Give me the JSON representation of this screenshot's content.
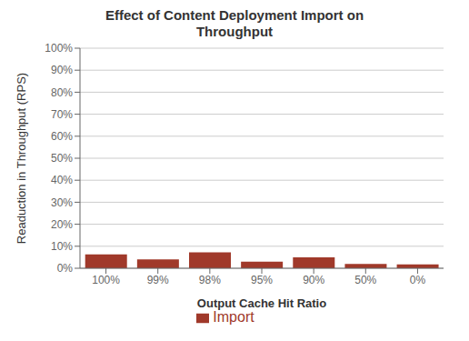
{
  "chart_data": {
    "type": "bar",
    "title": "Effect of Content Deployment Import on\nThroughput",
    "xlabel": "Output Cache Hit Ratio",
    "ylabel": "Readuction in Throughput  (RPS)",
    "categories": [
      "100%",
      "99%",
      "98%",
      "95%",
      "90%",
      "50%",
      "0%"
    ],
    "series": [
      {
        "name": "Import",
        "color": "#A0392A",
        "values": [
          0.063,
          0.04,
          0.072,
          0.03,
          0.05,
          0.02,
          0.018
        ]
      }
    ],
    "ylim": [
      0,
      1.0
    ],
    "yticks": [
      {
        "value": 0.0,
        "label": "0%"
      },
      {
        "value": 0.1,
        "label": "10%"
      },
      {
        "value": 0.2,
        "label": "20%"
      },
      {
        "value": 0.3,
        "label": "30%"
      },
      {
        "value": 0.4,
        "label": "40%"
      },
      {
        "value": 0.5,
        "label": "50%"
      },
      {
        "value": 0.6,
        "label": "60%"
      },
      {
        "value": 0.7,
        "label": "70%"
      },
      {
        "value": 0.8,
        "label": "80%"
      },
      {
        "value": 0.9,
        "label": "90%"
      },
      {
        "value": 1.0,
        "label": "100%"
      }
    ],
    "grid": true,
    "legend": "bottom"
  }
}
